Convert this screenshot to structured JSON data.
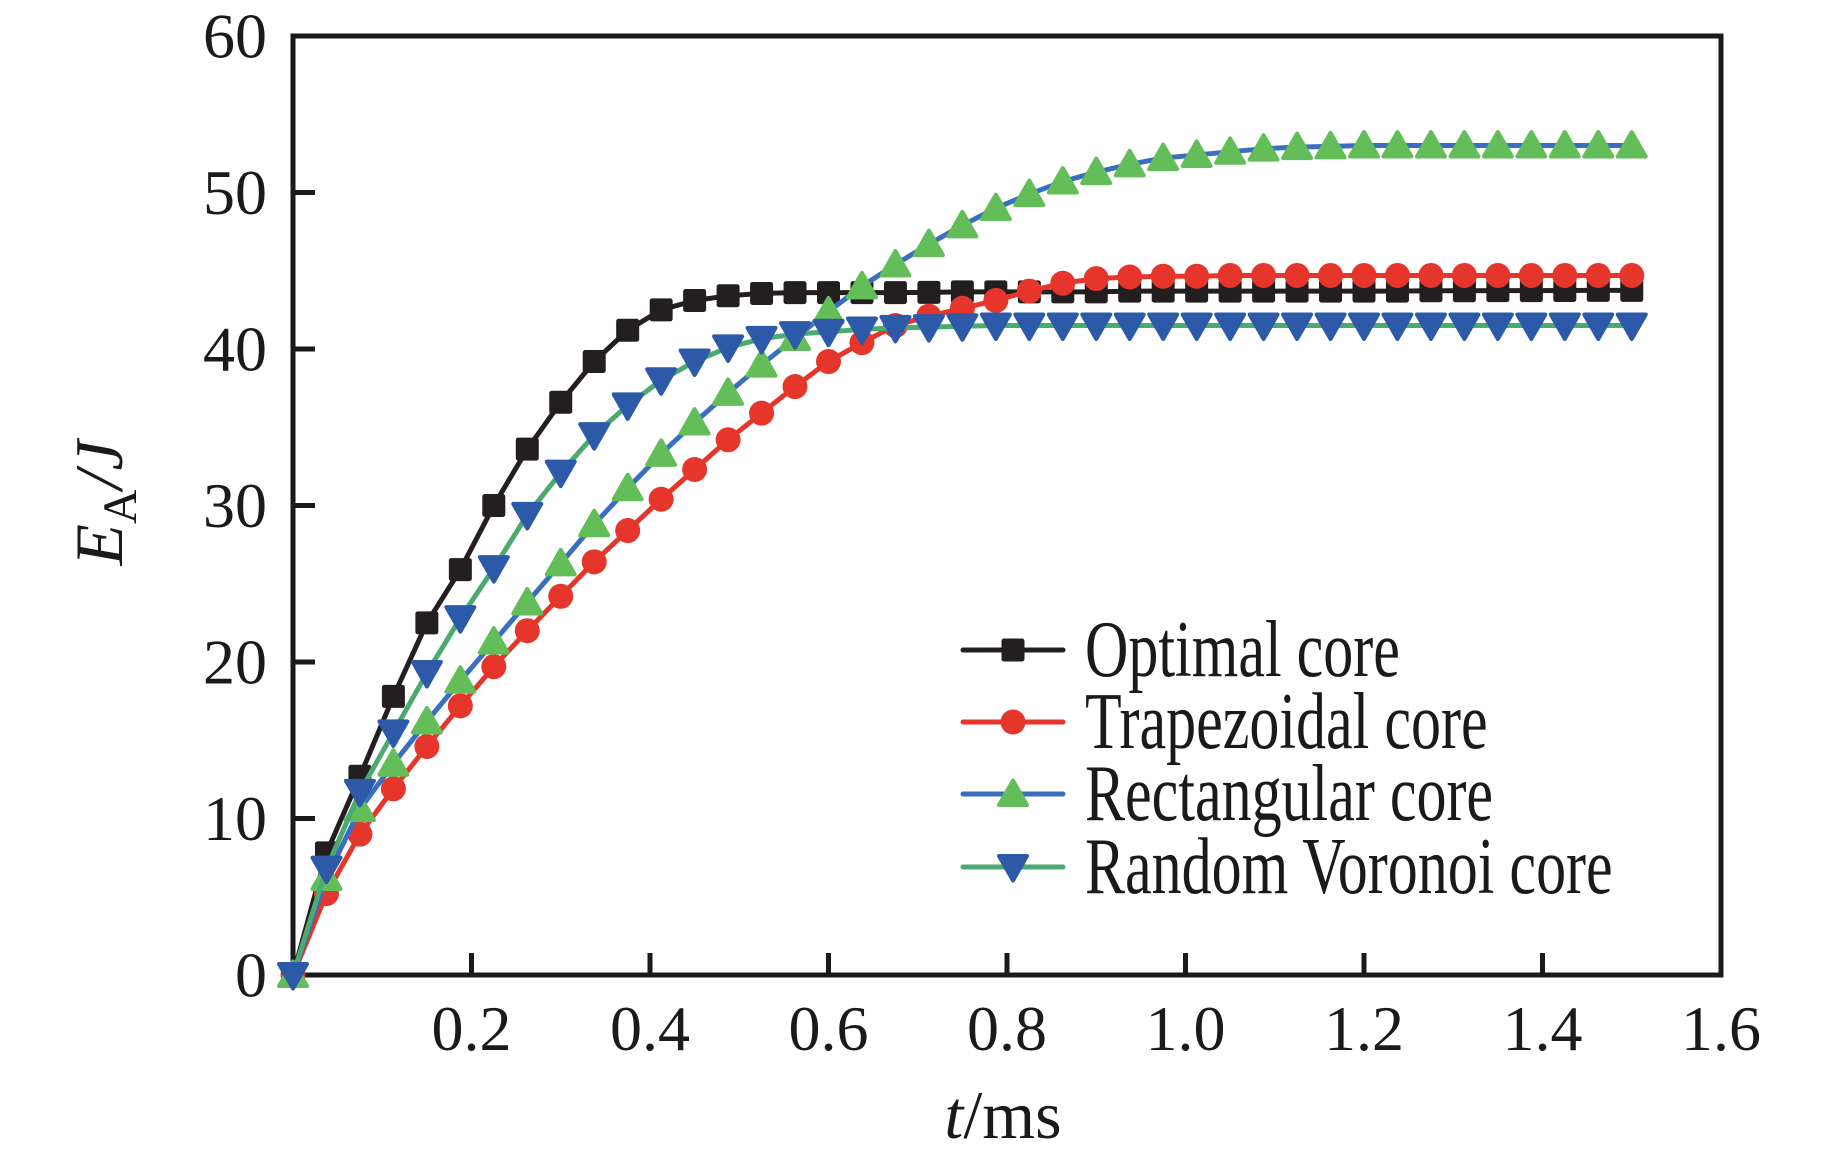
{
  "chart_data": {
    "type": "line",
    "title": "",
    "xlabel": "t/ms",
    "ylabel": "EA/J",
    "axis_labels": {
      "x_main": "t",
      "x_unit": "/ms",
      "y_main": "E",
      "y_sub": "A",
      "y_unit": "/J"
    },
    "xlim": [
      0,
      1.6
    ],
    "ylim": [
      0,
      60
    ],
    "grid": false,
    "legend_position": "center-right",
    "xticks": {
      "values": [
        0.2,
        0.4,
        0.6,
        0.8,
        1.0,
        1.2,
        1.4,
        1.6
      ],
      "labels": [
        "0.2",
        "0.4",
        "0.6",
        "0.8",
        "1.0",
        "1.2",
        "1.4",
        "1.6"
      ]
    },
    "yticks": {
      "values": [
        0,
        10,
        20,
        30,
        40,
        50,
        60
      ],
      "labels": [
        "0",
        "10",
        "20",
        "30",
        "40",
        "50",
        "60"
      ]
    },
    "x": [
      0,
      0.0375,
      0.075,
      0.1125,
      0.15,
      0.1875,
      0.225,
      0.2625,
      0.3,
      0.3375,
      0.375,
      0.4125,
      0.45,
      0.4875,
      0.525,
      0.5625,
      0.6,
      0.6375,
      0.675,
      0.7125,
      0.75,
      0.7875,
      0.825,
      0.8625,
      0.9,
      0.9375,
      0.975,
      1.0125,
      1.05,
      1.0875,
      1.125,
      1.1625,
      1.2,
      1.2375,
      1.275,
      1.3125,
      1.35,
      1.3875,
      1.425,
      1.4625,
      1.5
    ],
    "series": [
      {
        "name": "Optimal core",
        "line_color": "#231f20",
        "marker": "square",
        "marker_color": "#231f20",
        "values": [
          0,
          7.8,
          12.7,
          17.8,
          22.5,
          25.9,
          30.0,
          33.6,
          36.6,
          39.2,
          41.2,
          42.5,
          43.1,
          43.4,
          43.55,
          43.6,
          43.6,
          43.6,
          43.6,
          43.62,
          43.65,
          43.65,
          43.65,
          43.65,
          43.65,
          43.7,
          43.7,
          43.7,
          43.7,
          43.7,
          43.7,
          43.7,
          43.7,
          43.7,
          43.72,
          43.72,
          43.73,
          43.73,
          43.74,
          43.75,
          43.75
        ]
      },
      {
        "name": "Trapezoidal core",
        "line_color": "#e6352b",
        "marker": "circle",
        "marker_color": "#e6352b",
        "values": [
          0,
          5.2,
          9.0,
          11.9,
          14.6,
          17.2,
          19.7,
          22.0,
          24.2,
          26.4,
          28.4,
          30.4,
          32.3,
          34.2,
          35.9,
          37.6,
          39.2,
          40.4,
          41.5,
          42.1,
          42.6,
          43.1,
          43.7,
          44.2,
          44.5,
          44.6,
          44.65,
          44.65,
          44.7,
          44.7,
          44.7,
          44.7,
          44.7,
          44.7,
          44.7,
          44.7,
          44.7,
          44.7,
          44.7,
          44.7,
          44.7
        ]
      },
      {
        "name": "Rectangular core",
        "line_color": "#3a6ec0",
        "marker": "triangle-up",
        "marker_color": "#63bd58",
        "values": [
          0,
          6.2,
          10.6,
          13.5,
          16.2,
          18.8,
          21.3,
          23.8,
          26.3,
          28.8,
          31.1,
          33.3,
          35.3,
          37.2,
          39.0,
          40.7,
          42.4,
          44.0,
          45.4,
          46.7,
          47.9,
          49.0,
          49.9,
          50.7,
          51.3,
          51.8,
          52.2,
          52.4,
          52.6,
          52.8,
          52.9,
          52.95,
          53.0,
          53.0,
          53.0,
          53.0,
          53.0,
          53.0,
          53.0,
          53.0,
          53.0
        ]
      },
      {
        "name": "Random Voronoi core",
        "line_color": "#4caa6e",
        "marker": "triangle-down",
        "marker_color": "#2c5aa9",
        "values": [
          0,
          6.8,
          11.7,
          15.5,
          19.3,
          22.8,
          26.0,
          29.4,
          32.1,
          34.5,
          36.4,
          38.0,
          39.2,
          40.1,
          40.65,
          40.95,
          41.1,
          41.25,
          41.35,
          41.4,
          41.45,
          41.5,
          41.5,
          41.5,
          41.5,
          41.5,
          41.5,
          41.5,
          41.5,
          41.5,
          41.5,
          41.5,
          41.5,
          41.5,
          41.5,
          41.5,
          41.5,
          41.5,
          41.5,
          41.5,
          41.5
        ]
      }
    ]
  }
}
